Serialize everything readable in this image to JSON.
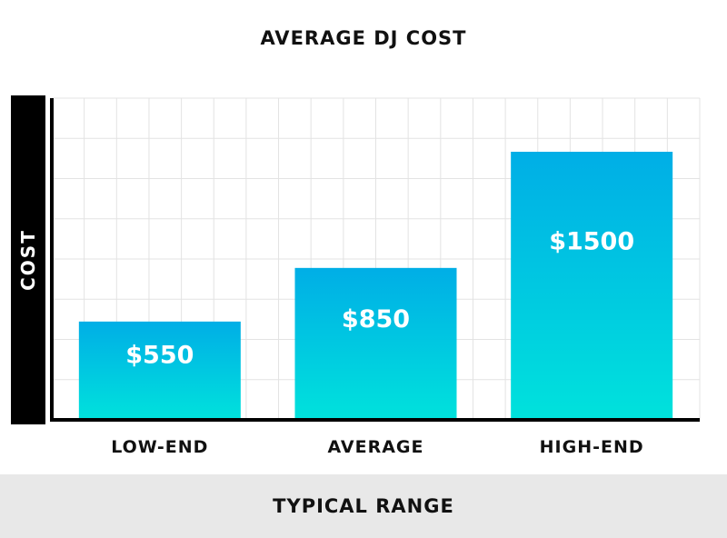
{
  "chart_data": {
    "type": "bar",
    "title": "AVERAGE DJ COST",
    "xlabel": "TYPICAL RANGE",
    "ylabel": "COST",
    "categories": [
      "LOW-END",
      "AVERAGE",
      "HIGH-END"
    ],
    "values": [
      550,
      850,
      1500
    ],
    "data_labels": [
      "$550",
      "$850",
      "$1500"
    ],
    "ylim": [
      0,
      1800
    ],
    "grid": true,
    "legend": "none",
    "colors": {
      "bar_top": "#00aee6",
      "bar_bottom": "#00e2dc",
      "grid": "#e3e3e3",
      "axis": "#000000",
      "label_text": "#ffffff"
    }
  }
}
